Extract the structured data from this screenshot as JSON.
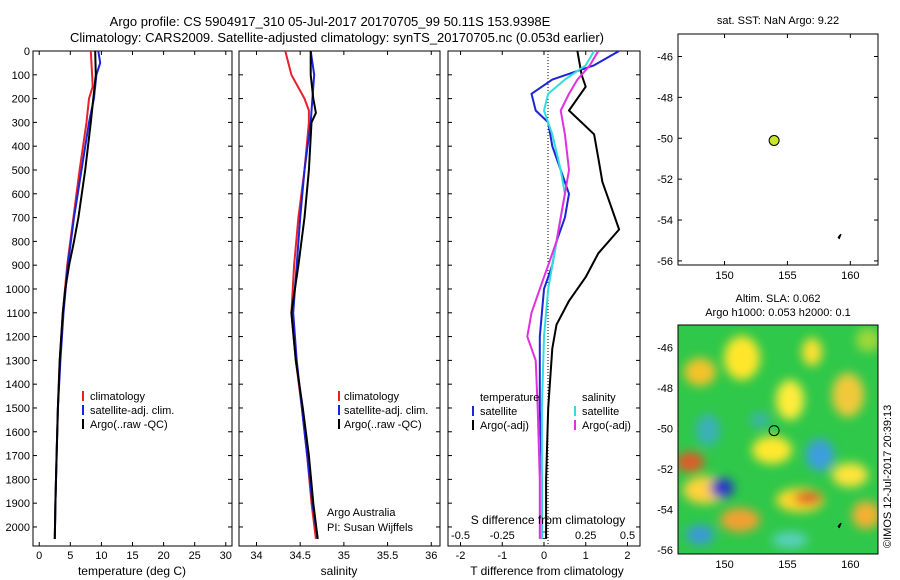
{
  "header": {
    "title_line1": "Argo profile: CS 5904917_310 05-Jul-2017 20170705_99 50.11S 153.9398E",
    "title_line2": "Climatology: CARS2009. Satellite-adjusted climatology: synTS_20170705.nc (0.053d earlier)"
  },
  "credit": "©IMOS 12-Jul-2017 20:39:13",
  "colors": {
    "climatology": "#e8202a",
    "satellite": "#1c24d8",
    "argo": "#000000",
    "sat_sal": "#33dddd",
    "argo_sal": "#e030e0",
    "argo_marker": "#c8e62a"
  },
  "chart_data": [
    {
      "type": "line",
      "id": "temperature",
      "xlabel": "temperature (deg C)",
      "ylabel": "",
      "xlim": [
        -1,
        31
      ],
      "ylim": [
        2080,
        0
      ],
      "xticks": [
        "0",
        "5",
        "10",
        "15",
        "20",
        "25",
        "30"
      ],
      "yticks": [
        "0",
        "100",
        "200",
        "300",
        "400",
        "500",
        "600",
        "700",
        "800",
        "900",
        "1000",
        "1100",
        "1200",
        "1300",
        "1400",
        "1500",
        "1600",
        "1700",
        "1800",
        "1900",
        "2000"
      ],
      "legend": [
        "climatology",
        "satellite-adj. clim.",
        "Argo(..raw -QC)"
      ],
      "series": [
        {
          "name": "climatology",
          "color": "#e8202a",
          "depth": [
            0,
            100,
            150,
            200,
            300,
            500,
            700,
            900,
            1100,
            1300,
            1500,
            1700,
            1900,
            2050
          ],
          "values": [
            8.3,
            8.5,
            8.6,
            8.0,
            7.6,
            6.5,
            5.5,
            4.5,
            3.8,
            3.3,
            3.0,
            2.8,
            2.6,
            2.5
          ]
        },
        {
          "name": "satellite-adj. clim.",
          "color": "#1c24d8",
          "depth": [
            0,
            50,
            100,
            200,
            300,
            500,
            700,
            900,
            1100,
            1300,
            1500,
            1700,
            1900,
            2050
          ],
          "values": [
            9.5,
            9.8,
            9.2,
            8.8,
            8.0,
            6.8,
            5.6,
            4.6,
            3.9,
            3.4,
            3.0,
            2.8,
            2.6,
            2.5
          ]
        },
        {
          "name": "Argo(..raw -QC)",
          "color": "#000000",
          "depth": [
            0,
            100,
            200,
            300,
            500,
            700,
            800,
            900,
            1000,
            1100,
            1300,
            1500,
            1700,
            1900,
            2050
          ],
          "values": [
            9.0,
            9.1,
            8.7,
            8.3,
            7.4,
            6.3,
            5.6,
            4.8,
            4.2,
            3.8,
            3.3,
            3.0,
            2.8,
            2.6,
            2.5
          ]
        }
      ]
    },
    {
      "type": "line",
      "id": "salinity",
      "xlabel": "salinity",
      "ylabel": "",
      "xlim": [
        33.8,
        36.1
      ],
      "ylim": [
        2080,
        0
      ],
      "xticks": [
        "34",
        "34.5",
        "35",
        "35.5",
        "36"
      ],
      "legend": [
        "climatology",
        "satellite-adj. clim.",
        "Argo(..raw -QC)"
      ],
      "annotation_line1": "Argo Australia",
      "annotation_line2": "PI: Susan Wijffels",
      "series": [
        {
          "name": "climatology",
          "color": "#e8202a",
          "depth": [
            0,
            100,
            200,
            250,
            300,
            500,
            700,
            900,
            1100,
            1300,
            1500,
            1700,
            1900,
            2050
          ],
          "values": [
            34.33,
            34.4,
            34.55,
            34.6,
            34.6,
            34.55,
            34.48,
            34.43,
            34.4,
            34.45,
            34.52,
            34.58,
            34.63,
            34.68
          ]
        },
        {
          "name": "satellite-adj. clim.",
          "color": "#1c24d8",
          "depth": [
            0,
            100,
            200,
            300,
            500,
            700,
            900,
            1100,
            1300,
            1500,
            1700,
            1900,
            2050
          ],
          "values": [
            34.62,
            34.66,
            34.64,
            34.62,
            34.55,
            34.5,
            34.46,
            34.42,
            34.46,
            34.52,
            34.58,
            34.64,
            34.7
          ]
        },
        {
          "name": "Argo(..raw -QC)",
          "color": "#000000",
          "depth": [
            0,
            100,
            200,
            260,
            300,
            500,
            700,
            900,
            1100,
            1300,
            1500,
            1700,
            1900,
            2050
          ],
          "values": [
            34.62,
            34.62,
            34.65,
            34.68,
            34.63,
            34.6,
            34.55,
            34.48,
            34.4,
            34.45,
            34.53,
            34.6,
            34.65,
            34.7
          ]
        }
      ]
    },
    {
      "type": "line",
      "id": "difference",
      "xlabel": "T difference from climatology",
      "xlabel_top": "S difference from climatology",
      "xlim": [
        -2.3,
        2.3
      ],
      "ylim": [
        2080,
        0
      ],
      "xticks": [
        "-2",
        "-1",
        "0",
        "1",
        "2"
      ],
      "s_ticks": [
        "-0.5",
        "-0.25",
        "0",
        "0.25",
        "0.5"
      ],
      "legend_temperature_title": "temperature",
      "legend_salinity_title": "salinity",
      "legend_temperature": [
        "satellite",
        "Argo(-adj)"
      ],
      "legend_salinity": [
        "satellite",
        "Argo(-adj)"
      ],
      "series": [
        {
          "name": "satellite",
          "color": "#1c24d8",
          "depth": [
            0,
            60,
            120,
            180,
            250,
            300,
            400,
            500,
            600,
            700,
            800,
            900,
            1000,
            1200,
            1500,
            1800,
            2050
          ],
          "values": [
            1.8,
            1.2,
            0.2,
            -0.3,
            -0.2,
            0.1,
            0.2,
            0.4,
            0.6,
            0.5,
            0.3,
            0.2,
            0.0,
            -0.1,
            -0.1,
            -0.05,
            -0.05
          ]
        },
        {
          "name": "Argo(-adj)",
          "color": "#000000",
          "depth": [
            0,
            100,
            150,
            250,
            350,
            450,
            550,
            650,
            750,
            850,
            950,
            1050,
            1150,
            1250,
            1500,
            1800,
            2050
          ],
          "values": [
            0.8,
            0.9,
            1.0,
            0.6,
            1.2,
            1.3,
            1.4,
            1.6,
            1.8,
            1.3,
            1.0,
            0.6,
            0.3,
            0.2,
            0.1,
            0.05,
            0.05
          ]
        },
        {
          "name": "satellite",
          "color": "#33dddd",
          "depth": [
            0,
            60,
            120,
            180,
            250,
            350,
            500,
            600,
            700,
            800,
            1000,
            1200,
            1500,
            1800,
            2050
          ],
          "values": [
            1.2,
            1.0,
            0.5,
            0.1,
            0.0,
            0.2,
            0.4,
            0.5,
            0.4,
            0.3,
            0.1,
            0.0,
            -0.05,
            -0.05,
            -0.05
          ]
        },
        {
          "name": "Argo(-adj)",
          "color": "#e030e0",
          "depth": [
            0,
            60,
            120,
            180,
            250,
            350,
            500,
            600,
            700,
            800,
            900,
            1000,
            1100,
            1200,
            1300,
            1500,
            1800,
            2050
          ],
          "values": [
            1.3,
            1.1,
            0.8,
            0.6,
            0.4,
            0.5,
            0.6,
            0.5,
            0.4,
            0.3,
            0.1,
            -0.1,
            -0.3,
            -0.4,
            -0.2,
            -0.15,
            -0.1,
            -0.1
          ]
        }
      ]
    },
    {
      "type": "scatter",
      "id": "sst-map",
      "title": "sat. SST: NaN Argo: 9.22",
      "xlim": [
        146.3,
        162.2
      ],
      "ylim": [
        -56.2,
        -44.9
      ],
      "xticks": [
        "150",
        "155",
        "160"
      ],
      "yticks": [
        "-46",
        "-48",
        "-50",
        "-52",
        "-54",
        "-56"
      ],
      "points": [
        {
          "x": 153.94,
          "y": -50.11
        }
      ]
    },
    {
      "type": "heatmap",
      "id": "sla-map",
      "title_line1": "Altim. SLA: 0.062",
      "title_line2": "Argo h1000: 0.053 h2000: 0.1",
      "xlim": [
        146.3,
        162.2
      ],
      "ylim": [
        -56.2,
        -44.9
      ],
      "xticks": [
        "150",
        "155",
        "160"
      ],
      "yticks": [
        "-46",
        "-48",
        "-50",
        "-52",
        "-54",
        "-56"
      ],
      "points": [
        {
          "x": 153.94,
          "y": -50.11
        }
      ]
    }
  ]
}
